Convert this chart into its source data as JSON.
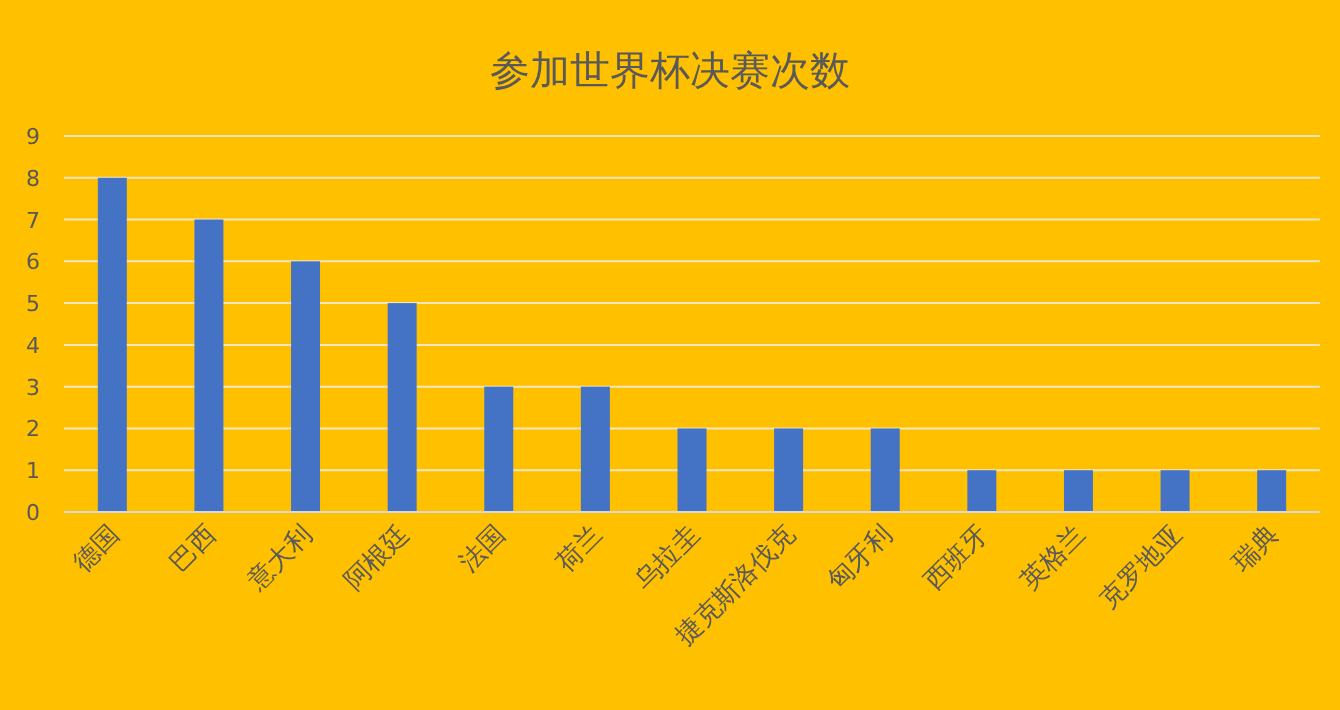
{
  "chart_data": {
    "type": "bar",
    "title": "参加世界杯决赛次数",
    "categories": [
      "德国",
      "巴西",
      "意大利",
      "阿根廷",
      "法国",
      "荷兰",
      "乌拉圭",
      "捷克斯洛伐克",
      "匈牙利",
      "西班牙",
      "英格兰",
      "克罗地亚",
      "瑞典"
    ],
    "values": [
      8,
      7,
      6,
      5,
      3,
      3,
      2,
      2,
      2,
      1,
      1,
      1,
      1
    ],
    "color": "#4472c4",
    "ylim": [
      0,
      9
    ],
    "yticks": [
      0,
      1,
      2,
      3,
      4,
      5,
      6,
      7,
      8,
      9
    ],
    "grid": "y"
  }
}
